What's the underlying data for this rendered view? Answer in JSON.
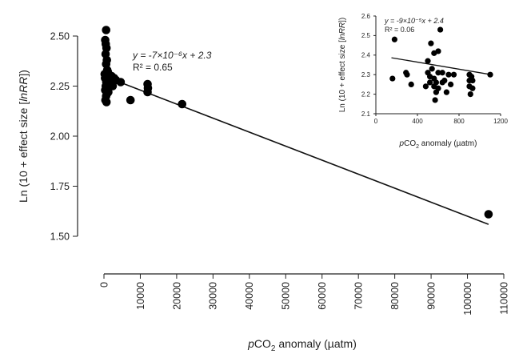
{
  "chart_data": [
    {
      "type": "scatter",
      "title": "",
      "xlabel_prefix": "p",
      "xlabel_main": "CO",
      "xlabel_sub": "2",
      "xlabel_rest": " anomaly (µatm)",
      "ylabel_pre": "Ln (10 + effect size [",
      "ylabel_italic": "lnRR",
      "ylabel_post": "])",
      "xlim": [
        0,
        110000
      ],
      "ylim": [
        1.5,
        2.5
      ],
      "xticks": [
        0,
        10000,
        20000,
        30000,
        40000,
        50000,
        60000,
        70000,
        80000,
        90000,
        100000,
        110000
      ],
      "yticks": [
        1.5,
        1.75,
        2.0,
        2.25,
        2.5
      ],
      "ytick_labels": [
        "1.50",
        "1.75",
        "2.00",
        "2.25",
        "2.50"
      ],
      "annotation_eq": "y = -7×10⁻⁶x + 2.3",
      "annotation_r2": "R² = 0.65",
      "regression": {
        "slope": -7e-06,
        "intercept": 2.3
      },
      "points": [
        [
          600,
          2.53
        ],
        [
          350,
          2.48
        ],
        [
          500,
          2.46
        ],
        [
          700,
          2.44
        ],
        [
          450,
          2.41
        ],
        [
          800,
          2.38
        ],
        [
          600,
          2.36
        ],
        [
          900,
          2.33
        ],
        [
          200,
          2.31
        ],
        [
          1100,
          2.32
        ],
        [
          1500,
          2.3
        ],
        [
          300,
          2.29
        ],
        [
          900,
          2.29
        ],
        [
          1300,
          2.28
        ],
        [
          2100,
          2.3
        ],
        [
          650,
          2.27
        ],
        [
          1700,
          2.26
        ],
        [
          2800,
          2.29
        ],
        [
          500,
          2.25
        ],
        [
          1000,
          2.24
        ],
        [
          350,
          2.23
        ],
        [
          1200,
          2.22
        ],
        [
          800,
          2.21
        ],
        [
          600,
          2.2
        ],
        [
          400,
          2.18
        ],
        [
          700,
          2.17
        ],
        [
          1300,
          2.25
        ],
        [
          1900,
          2.27
        ],
        [
          2400,
          2.25
        ],
        [
          3300,
          2.28
        ],
        [
          4600,
          2.27
        ],
        [
          7300,
          2.18
        ],
        [
          12000,
          2.26
        ],
        [
          12100,
          2.24
        ],
        [
          12000,
          2.22
        ],
        [
          21500,
          2.16
        ],
        [
          105800,
          1.61
        ]
      ]
    },
    {
      "type": "scatter",
      "title": "",
      "xlabel_prefix": "p",
      "xlabel_main": "CO",
      "xlabel_sub": "2",
      "xlabel_rest": " anomaly (µatm)",
      "ylabel_pre": "Ln (10 + effect size [",
      "ylabel_italic": "lnRR",
      "ylabel_post": "])",
      "xlim": [
        0,
        1200
      ],
      "ylim": [
        2.1,
        2.6
      ],
      "xticks": [
        0,
        400,
        800,
        1200
      ],
      "yticks": [
        2.1,
        2.2,
        2.3,
        2.4,
        2.5,
        2.6
      ],
      "ytick_labels": [
        "2.1",
        "2.2",
        "2.3",
        "2.4",
        "2.5",
        "2.6"
      ],
      "annotation_eq": "y = -9×10⁻⁵x + 2.4",
      "annotation_r2": "R² = 0.06",
      "regression": {
        "slope": -9e-05,
        "intercept": 2.4
      },
      "points": [
        [
          180,
          2.48
        ],
        [
          620,
          2.53
        ],
        [
          530,
          2.46
        ],
        [
          560,
          2.41
        ],
        [
          600,
          2.42
        ],
        [
          500,
          2.37
        ],
        [
          160,
          2.28
        ],
        [
          290,
          2.31
        ],
        [
          300,
          2.3
        ],
        [
          340,
          2.25
        ],
        [
          500,
          2.31
        ],
        [
          520,
          2.29
        ],
        [
          540,
          2.33
        ],
        [
          560,
          2.28
        ],
        [
          580,
          2.26
        ],
        [
          600,
          2.31
        ],
        [
          640,
          2.31
        ],
        [
          660,
          2.27
        ],
        [
          700,
          2.3
        ],
        [
          520,
          2.26
        ],
        [
          560,
          2.24
        ],
        [
          600,
          2.23
        ],
        [
          640,
          2.26
        ],
        [
          580,
          2.21
        ],
        [
          570,
          2.17
        ],
        [
          750,
          2.3
        ],
        [
          900,
          2.3
        ],
        [
          920,
          2.29
        ],
        [
          900,
          2.27
        ],
        [
          930,
          2.27
        ],
        [
          900,
          2.24
        ],
        [
          930,
          2.23
        ],
        [
          910,
          2.2
        ],
        [
          1100,
          2.3
        ],
        [
          480,
          2.24
        ],
        [
          720,
          2.25
        ],
        [
          680,
          2.21
        ]
      ]
    }
  ]
}
